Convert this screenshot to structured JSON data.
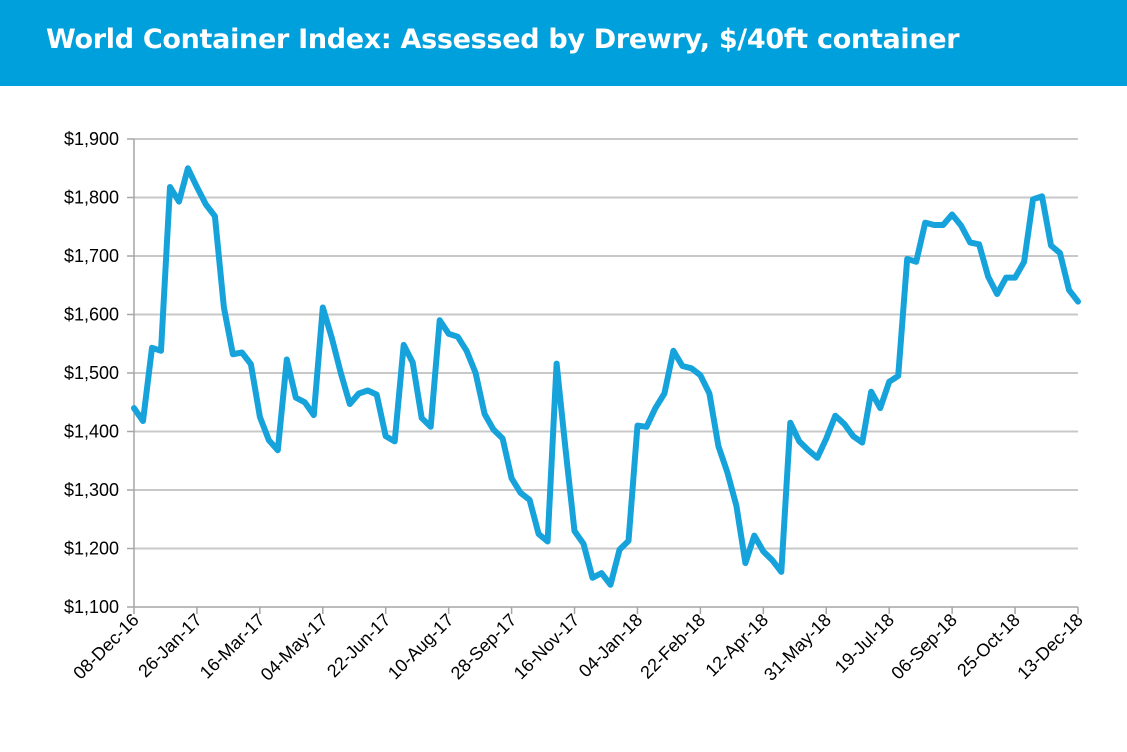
{
  "title": "World Container Index: Assessed by Drewry, $/40ft container",
  "colors": {
    "header": "#00a0dc",
    "line": "#16a3dc",
    "grid": "#c8c8c8",
    "axis": "#a6a6a6"
  },
  "chart_data": {
    "type": "line",
    "title": "World Container Index: Assessed by Drewry, $/40ft container",
    "xlabel": "",
    "ylabel": "",
    "ylim": [
      1100,
      1900
    ],
    "ytick_values": [
      1100,
      1200,
      1300,
      1400,
      1500,
      1600,
      1700,
      1800,
      1900
    ],
    "ytick_labels": [
      "$1,100",
      "$1,200",
      "$1,300",
      "$1,400",
      "$1,500",
      "$1,600",
      "$1,700",
      "$1,800",
      "$1,900"
    ],
    "xlim": [
      "2016-12-08",
      "2018-12-13"
    ],
    "xtick_values": [
      "2016-12-08",
      "2017-01-26",
      "2017-03-16",
      "2017-05-04",
      "2017-06-22",
      "2017-08-10",
      "2017-09-28",
      "2017-11-16",
      "2018-01-04",
      "2018-02-22",
      "2018-04-12",
      "2018-05-31",
      "2018-07-19",
      "2018-09-06",
      "2018-10-25",
      "2018-12-13"
    ],
    "xtick_labels": [
      "08-Dec-16",
      "26-Jan-17",
      "16-Mar-17",
      "04-May-17",
      "22-Jun-17",
      "10-Aug-17",
      "28-Sep-17",
      "16-Nov-17",
      "04-Jan-18",
      "22-Feb-18",
      "12-Apr-18",
      "31-May-18",
      "19-Jul-18",
      "06-Sep-18",
      "25-Oct-18",
      "13-Dec-18"
    ],
    "grid": true,
    "legend": "none",
    "series": [
      {
        "x": [
          "2016-12-08",
          "2016-12-15",
          "2016-12-22",
          "2016-12-29",
          "2017-01-05",
          "2017-01-12",
          "2017-01-19",
          "2017-01-26",
          "2017-02-02",
          "2017-02-09",
          "2017-02-16",
          "2017-02-23",
          "2017-03-02",
          "2017-03-09",
          "2017-03-16",
          "2017-03-23",
          "2017-03-30",
          "2017-04-06",
          "2017-04-13",
          "2017-04-20",
          "2017-04-27",
          "2017-05-04",
          "2017-05-11",
          "2017-05-18",
          "2017-05-25",
          "2017-06-01",
          "2017-06-08",
          "2017-06-15",
          "2017-06-22",
          "2017-06-29",
          "2017-07-06",
          "2017-07-13",
          "2017-07-20",
          "2017-07-27",
          "2017-08-03",
          "2017-08-10",
          "2017-08-17",
          "2017-08-24",
          "2017-08-31",
          "2017-09-07",
          "2017-09-14",
          "2017-09-21",
          "2017-09-28",
          "2017-10-05",
          "2017-10-12",
          "2017-10-19",
          "2017-10-26",
          "2017-11-02",
          "2017-11-09",
          "2017-11-16",
          "2017-11-23",
          "2017-11-30",
          "2017-12-07",
          "2017-12-14",
          "2017-12-21",
          "2017-12-28",
          "2018-01-04",
          "2018-01-11",
          "2018-01-18",
          "2018-01-25",
          "2018-02-01",
          "2018-02-08",
          "2018-02-15",
          "2018-02-22",
          "2018-03-01",
          "2018-03-08",
          "2018-03-15",
          "2018-03-22",
          "2018-03-29",
          "2018-04-05",
          "2018-04-12",
          "2018-04-19",
          "2018-04-26",
          "2018-05-03",
          "2018-05-10",
          "2018-05-17",
          "2018-05-24",
          "2018-05-31",
          "2018-06-07",
          "2018-06-14",
          "2018-06-21",
          "2018-06-28",
          "2018-07-05",
          "2018-07-12",
          "2018-07-19",
          "2018-07-26",
          "2018-08-02",
          "2018-08-09",
          "2018-08-16",
          "2018-08-23",
          "2018-08-30",
          "2018-09-06",
          "2018-09-13",
          "2018-09-20",
          "2018-09-27",
          "2018-10-04",
          "2018-10-11",
          "2018-10-18",
          "2018-10-25",
          "2018-11-01",
          "2018-11-08",
          "2018-11-15",
          "2018-11-22",
          "2018-11-29",
          "2018-12-06",
          "2018-12-13"
        ],
        "y": [
          1440,
          1418,
          1543,
          1538,
          1818,
          1793,
          1850,
          1818,
          1788,
          1768,
          1612,
          1532,
          1535,
          1515,
          1425,
          1385,
          1368,
          1523,
          1458,
          1450,
          1428,
          1612,
          1560,
          1500,
          1447,
          1465,
          1470,
          1463,
          1392,
          1383,
          1548,
          1518,
          1423,
          1408,
          1590,
          1567,
          1562,
          1538,
          1500,
          1430,
          1403,
          1388,
          1320,
          1295,
          1283,
          1225,
          1212,
          1516,
          1370,
          1230,
          1208,
          1150,
          1158,
          1138,
          1198,
          1213,
          1410,
          1408,
          1440,
          1465,
          1538,
          1512,
          1508,
          1496,
          1465,
          1375,
          1330,
          1273,
          1175,
          1222,
          1195,
          1180,
          1160,
          1415,
          1383,
          1368,
          1355,
          1388,
          1427,
          1413,
          1392,
          1381,
          1468,
          1440,
          1485,
          1495,
          1695,
          1690,
          1757,
          1753,
          1753,
          1771,
          1752,
          1723,
          1720,
          1665,
          1635,
          1663,
          1663,
          1690,
          1797,
          1802,
          1718,
          1705,
          1642,
          1622
        ]
      }
    ]
  }
}
